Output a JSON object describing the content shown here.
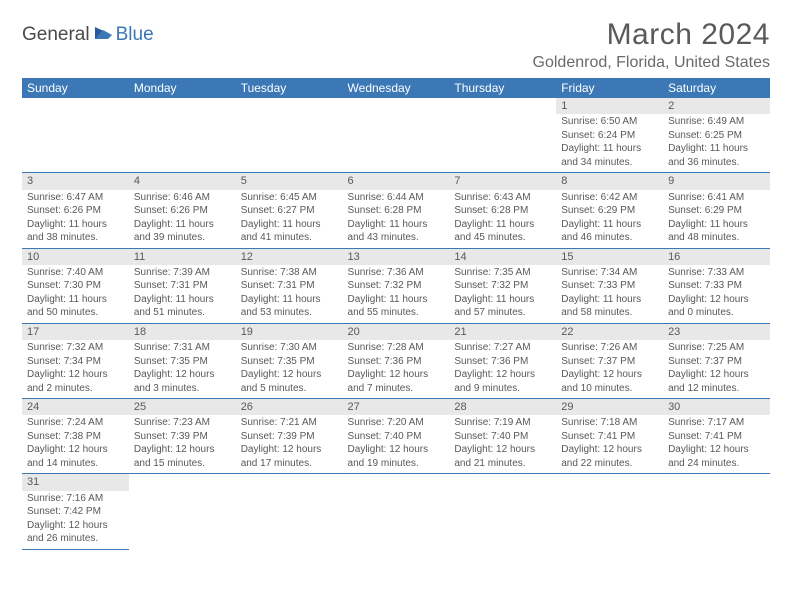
{
  "logo": {
    "text1": "General",
    "text2": "Blue"
  },
  "title": "March 2024",
  "location": "Goldenrod, Florida, United States",
  "colors": {
    "header_bg": "#3b78b5",
    "header_text": "#ffffff",
    "daynum_bg": "#e8e8e8",
    "text": "#595959",
    "row_border": "#3b78b5"
  },
  "daysOfWeek": [
    "Sunday",
    "Monday",
    "Tuesday",
    "Wednesday",
    "Thursday",
    "Friday",
    "Saturday"
  ],
  "weeks": [
    [
      null,
      null,
      null,
      null,
      null,
      {
        "n": "1",
        "sr": "Sunrise: 6:50 AM",
        "ss": "Sunset: 6:24 PM",
        "d1": "Daylight: 11 hours",
        "d2": "and 34 minutes."
      },
      {
        "n": "2",
        "sr": "Sunrise: 6:49 AM",
        "ss": "Sunset: 6:25 PM",
        "d1": "Daylight: 11 hours",
        "d2": "and 36 minutes."
      }
    ],
    [
      {
        "n": "3",
        "sr": "Sunrise: 6:47 AM",
        "ss": "Sunset: 6:26 PM",
        "d1": "Daylight: 11 hours",
        "d2": "and 38 minutes."
      },
      {
        "n": "4",
        "sr": "Sunrise: 6:46 AM",
        "ss": "Sunset: 6:26 PM",
        "d1": "Daylight: 11 hours",
        "d2": "and 39 minutes."
      },
      {
        "n": "5",
        "sr": "Sunrise: 6:45 AM",
        "ss": "Sunset: 6:27 PM",
        "d1": "Daylight: 11 hours",
        "d2": "and 41 minutes."
      },
      {
        "n": "6",
        "sr": "Sunrise: 6:44 AM",
        "ss": "Sunset: 6:28 PM",
        "d1": "Daylight: 11 hours",
        "d2": "and 43 minutes."
      },
      {
        "n": "7",
        "sr": "Sunrise: 6:43 AM",
        "ss": "Sunset: 6:28 PM",
        "d1": "Daylight: 11 hours",
        "d2": "and 45 minutes."
      },
      {
        "n": "8",
        "sr": "Sunrise: 6:42 AM",
        "ss": "Sunset: 6:29 PM",
        "d1": "Daylight: 11 hours",
        "d2": "and 46 minutes."
      },
      {
        "n": "9",
        "sr": "Sunrise: 6:41 AM",
        "ss": "Sunset: 6:29 PM",
        "d1": "Daylight: 11 hours",
        "d2": "and 48 minutes."
      }
    ],
    [
      {
        "n": "10",
        "sr": "Sunrise: 7:40 AM",
        "ss": "Sunset: 7:30 PM",
        "d1": "Daylight: 11 hours",
        "d2": "and 50 minutes."
      },
      {
        "n": "11",
        "sr": "Sunrise: 7:39 AM",
        "ss": "Sunset: 7:31 PM",
        "d1": "Daylight: 11 hours",
        "d2": "and 51 minutes."
      },
      {
        "n": "12",
        "sr": "Sunrise: 7:38 AM",
        "ss": "Sunset: 7:31 PM",
        "d1": "Daylight: 11 hours",
        "d2": "and 53 minutes."
      },
      {
        "n": "13",
        "sr": "Sunrise: 7:36 AM",
        "ss": "Sunset: 7:32 PM",
        "d1": "Daylight: 11 hours",
        "d2": "and 55 minutes."
      },
      {
        "n": "14",
        "sr": "Sunrise: 7:35 AM",
        "ss": "Sunset: 7:32 PM",
        "d1": "Daylight: 11 hours",
        "d2": "and 57 minutes."
      },
      {
        "n": "15",
        "sr": "Sunrise: 7:34 AM",
        "ss": "Sunset: 7:33 PM",
        "d1": "Daylight: 11 hours",
        "d2": "and 58 minutes."
      },
      {
        "n": "16",
        "sr": "Sunrise: 7:33 AM",
        "ss": "Sunset: 7:33 PM",
        "d1": "Daylight: 12 hours",
        "d2": "and 0 minutes."
      }
    ],
    [
      {
        "n": "17",
        "sr": "Sunrise: 7:32 AM",
        "ss": "Sunset: 7:34 PM",
        "d1": "Daylight: 12 hours",
        "d2": "and 2 minutes."
      },
      {
        "n": "18",
        "sr": "Sunrise: 7:31 AM",
        "ss": "Sunset: 7:35 PM",
        "d1": "Daylight: 12 hours",
        "d2": "and 3 minutes."
      },
      {
        "n": "19",
        "sr": "Sunrise: 7:30 AM",
        "ss": "Sunset: 7:35 PM",
        "d1": "Daylight: 12 hours",
        "d2": "and 5 minutes."
      },
      {
        "n": "20",
        "sr": "Sunrise: 7:28 AM",
        "ss": "Sunset: 7:36 PM",
        "d1": "Daylight: 12 hours",
        "d2": "and 7 minutes."
      },
      {
        "n": "21",
        "sr": "Sunrise: 7:27 AM",
        "ss": "Sunset: 7:36 PM",
        "d1": "Daylight: 12 hours",
        "d2": "and 9 minutes."
      },
      {
        "n": "22",
        "sr": "Sunrise: 7:26 AM",
        "ss": "Sunset: 7:37 PM",
        "d1": "Daylight: 12 hours",
        "d2": "and 10 minutes."
      },
      {
        "n": "23",
        "sr": "Sunrise: 7:25 AM",
        "ss": "Sunset: 7:37 PM",
        "d1": "Daylight: 12 hours",
        "d2": "and 12 minutes."
      }
    ],
    [
      {
        "n": "24",
        "sr": "Sunrise: 7:24 AM",
        "ss": "Sunset: 7:38 PM",
        "d1": "Daylight: 12 hours",
        "d2": "and 14 minutes."
      },
      {
        "n": "25",
        "sr": "Sunrise: 7:23 AM",
        "ss": "Sunset: 7:39 PM",
        "d1": "Daylight: 12 hours",
        "d2": "and 15 minutes."
      },
      {
        "n": "26",
        "sr": "Sunrise: 7:21 AM",
        "ss": "Sunset: 7:39 PM",
        "d1": "Daylight: 12 hours",
        "d2": "and 17 minutes."
      },
      {
        "n": "27",
        "sr": "Sunrise: 7:20 AM",
        "ss": "Sunset: 7:40 PM",
        "d1": "Daylight: 12 hours",
        "d2": "and 19 minutes."
      },
      {
        "n": "28",
        "sr": "Sunrise: 7:19 AM",
        "ss": "Sunset: 7:40 PM",
        "d1": "Daylight: 12 hours",
        "d2": "and 21 minutes."
      },
      {
        "n": "29",
        "sr": "Sunrise: 7:18 AM",
        "ss": "Sunset: 7:41 PM",
        "d1": "Daylight: 12 hours",
        "d2": "and 22 minutes."
      },
      {
        "n": "30",
        "sr": "Sunrise: 7:17 AM",
        "ss": "Sunset: 7:41 PM",
        "d1": "Daylight: 12 hours",
        "d2": "and 24 minutes."
      }
    ],
    [
      {
        "n": "31",
        "sr": "Sunrise: 7:16 AM",
        "ss": "Sunset: 7:42 PM",
        "d1": "Daylight: 12 hours",
        "d2": "and 26 minutes."
      },
      null,
      null,
      null,
      null,
      null,
      null
    ]
  ]
}
